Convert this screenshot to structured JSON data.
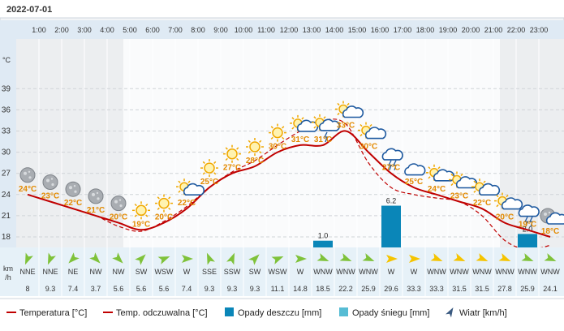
{
  "date": "2022-07-01",
  "chart_data": {
    "type": "line",
    "hours": [
      "1:00",
      "2:00",
      "3:00",
      "4:00",
      "5:00",
      "6:00",
      "7:00",
      "8:00",
      "9:00",
      "10:00",
      "11:00",
      "12:00",
      "13:00",
      "14:00",
      "15:00",
      "16:00",
      "17:00",
      "18:00",
      "19:00",
      "20:00",
      "21:00",
      "22:00",
      "23:00"
    ],
    "temp_axis": {
      "unit": "°C",
      "ticks": [
        39,
        36,
        33,
        30,
        27,
        24,
        21,
        18
      ]
    },
    "temperature": [
      24,
      23,
      22,
      21,
      20,
      19,
      20,
      22,
      25,
      27,
      28,
      30,
      31,
      31,
      33,
      30,
      27,
      25,
      24,
      23,
      22,
      20,
      19,
      18
    ],
    "temperature_labels": [
      "24°C",
      "23°C",
      "22°C",
      "21°C",
      "20°C",
      "19°C",
      "20°C",
      "22°C",
      "25°C",
      "27°C",
      "28°C",
      "30°C",
      "31°C",
      "31°C",
      "33°C",
      "30°C",
      "27°C",
      "25°C",
      "24°C",
      "23°C",
      "22°C",
      "20°C",
      "19°C",
      "18°C"
    ],
    "feels_like": [
      24,
      23,
      22,
      21,
      19.5,
      18.8,
      20.2,
      22.3,
      25,
      27.2,
      28.8,
      31,
      33,
      34.5,
      34,
      28.5,
      25,
      24,
      23.5,
      23,
      21,
      17.5,
      16.2,
      16.8
    ],
    "weather_icons": [
      "moon",
      "moon",
      "moon",
      "moon",
      "moon",
      "sun",
      "sun",
      "sun-cloud",
      "sun",
      "sun",
      "sun",
      "sun",
      "sun-cloud",
      "sun-storm",
      "sun-cloud",
      "sun-cloud",
      "storm-cloud",
      "cloud",
      "sun-cloud",
      "sun-cloud",
      "sun-cloud",
      "sun-cloud",
      "storm-cloud",
      "moon-cloud"
    ],
    "rain": {
      "values": [
        null,
        null,
        null,
        null,
        null,
        null,
        null,
        null,
        null,
        null,
        null,
        null,
        null,
        1.0,
        null,
        null,
        6.2,
        null,
        null,
        null,
        null,
        null,
        2.0,
        null
      ],
      "labels": [
        "",
        "",
        "",
        "",
        "",
        "",
        "",
        "",
        "",
        "",
        "",
        "",
        "",
        "1.0",
        "",
        "",
        "6.2",
        "",
        "",
        "",
        "",
        "",
        "2.0",
        ""
      ]
    },
    "wind": {
      "unit_line1": "km",
      "unit_line2": "/h",
      "directions": [
        "NNE",
        "NNE",
        "NE",
        "NW",
        "NW",
        "SW",
        "WSW",
        "W",
        "SSE",
        "SSW",
        "SW",
        "WSW",
        "W",
        "WNW",
        "WNW",
        "WNW",
        "W",
        "W",
        "WNW",
        "WNW",
        "WNW",
        "WNW",
        "WNW",
        "WNW"
      ],
      "speeds": [
        "8",
        "9.3",
        "7.4",
        "3.7",
        "5.6",
        "5.6",
        "5.6",
        "7.4",
        "9.3",
        "9.3",
        "9.3",
        "11.1",
        "14.8",
        "18.5",
        "22.2",
        "25.9",
        "29.6",
        "33.3",
        "33.3",
        "31.5",
        "31.5",
        "27.8",
        "25.9",
        "24.1"
      ]
    },
    "legend": [
      {
        "label": "Temperatura [°C]",
        "kind": "line-solid",
        "color": "#c00000"
      },
      {
        "label": "Temp. odczuwalna [°C]",
        "kind": "line-solid",
        "color": "#c00000"
      },
      {
        "label": "Opady deszczu [mm]",
        "kind": "box",
        "color": "#0a86b8"
      },
      {
        "label": "Opady śniegu [mm]",
        "kind": "box",
        "color": "#56bcd4"
      },
      {
        "label": "Wiatr [km/h]",
        "kind": "arrow",
        "color": "#3a5a80"
      }
    ],
    "colors": {
      "temp": "#c00000",
      "rain": "#0a86b8",
      "wind_green": "#7fc23a",
      "wind_yellow": "#f5c400",
      "label": "#e38a00"
    }
  }
}
